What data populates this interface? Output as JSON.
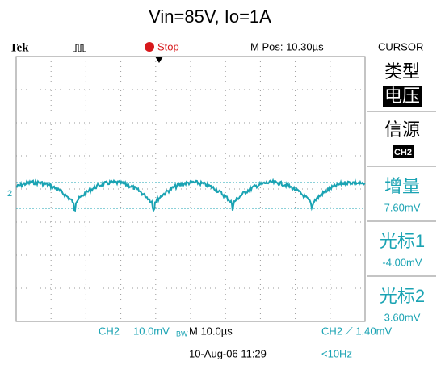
{
  "title": "Vin=85V, Io=1A",
  "header": {
    "brand": "Tek",
    "state": "Stop",
    "position": "M Pos: 10.30µs",
    "menu": "CURSOR"
  },
  "menu": {
    "type_label": "类型",
    "type_value": "电压",
    "source_label": "信源",
    "source_value": "CH2",
    "delta_label": "增量",
    "delta_value": "7.60mV",
    "cursor1_label": "光标1",
    "cursor1_value": "-4.00mV",
    "cursor2_label": "光标2",
    "cursor2_value": "3.60mV"
  },
  "marker": "2",
  "footer": {
    "channel": "CH2",
    "scale": "10.0mV",
    "bandwidth": "BW",
    "timebase": "M 10.0µs",
    "trigger": "CH2 ⟋ 1.40mV",
    "date": "10-Aug-06 11:29",
    "frequency": "<10Hz"
  }
}
